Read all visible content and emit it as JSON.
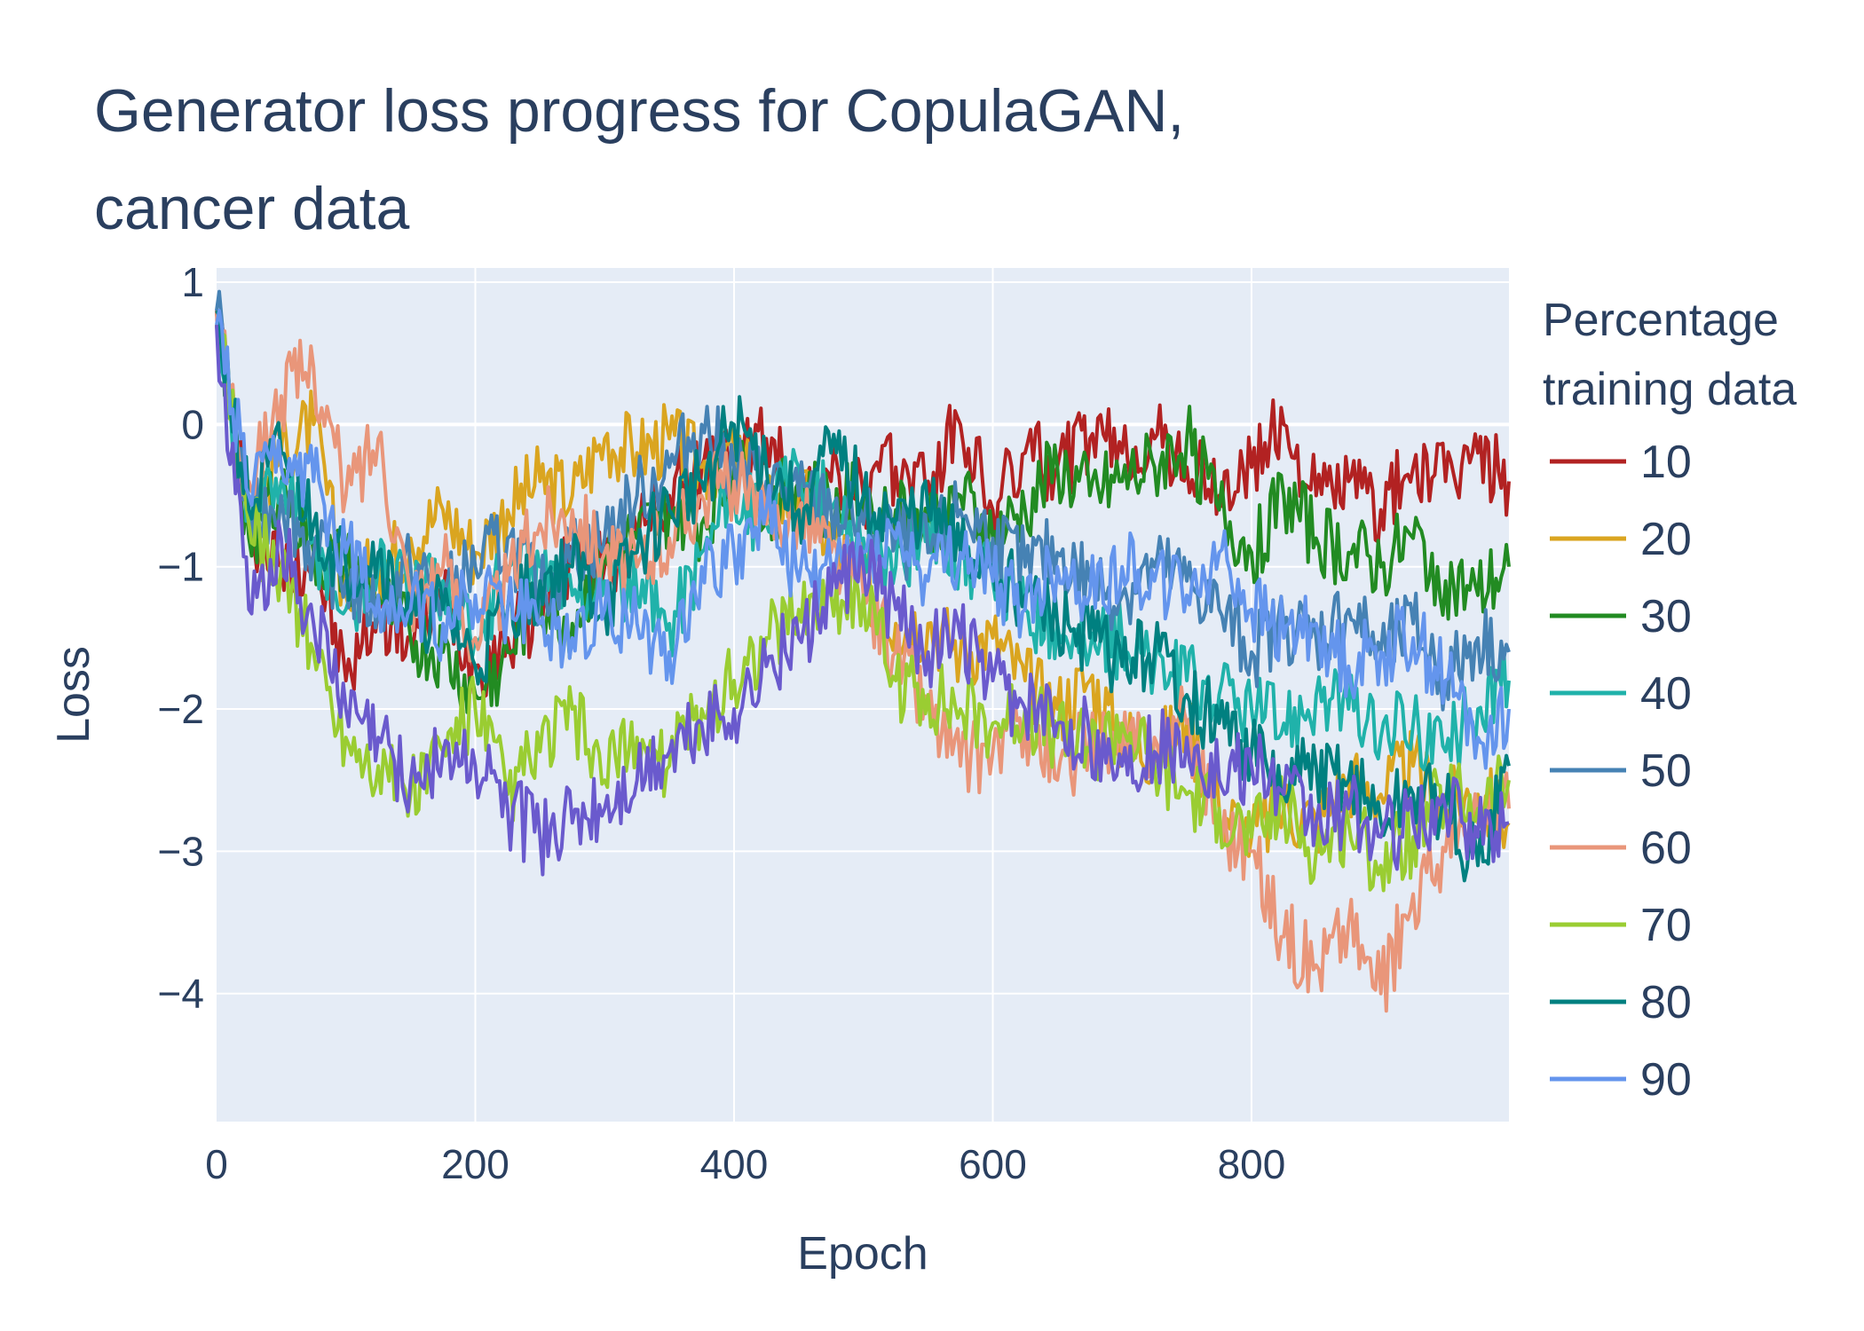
{
  "chart_data": {
    "type": "line",
    "title_lines": [
      "Generator loss progress for CopulaGAN,",
      "cancer data"
    ],
    "xlabel": "Epoch",
    "ylabel": "Loss",
    "xlim": [
      0,
      999
    ],
    "ylim": [
      -4.9,
      1.1
    ],
    "x_ticks": [
      0,
      200,
      400,
      600,
      800
    ],
    "x_tick_labels": [
      "0",
      "200",
      "400",
      "600",
      "800"
    ],
    "y_ticks": [
      1,
      0,
      -1,
      -2,
      -3,
      -4
    ],
    "y_tick_labels": [
      "1",
      "0",
      "−1",
      "−2",
      "−3",
      "−4"
    ],
    "grid": true,
    "plot_background": "#e5ecf6",
    "grid_color": "#ffffff",
    "legend": {
      "title_lines": [
        "Percentage",
        "training data"
      ],
      "placement": "right"
    },
    "series": [
      {
        "name": "10",
        "color": "#b22222",
        "x": [
          0,
          25,
          50,
          75,
          100,
          125,
          150,
          175,
          200,
          225,
          250,
          275,
          300,
          325,
          350,
          375,
          400,
          425,
          450,
          475,
          500,
          525,
          550,
          575,
          600,
          625,
          650,
          675,
          700,
          725,
          750,
          775,
          800,
          825,
          850,
          875,
          900,
          925,
          950,
          975,
          999
        ],
        "values": [
          0.8,
          -0.7,
          -1.0,
          -0.9,
          -1.8,
          -1.3,
          -1.5,
          -1.2,
          -1.7,
          -1.5,
          -1.3,
          -0.9,
          -1.0,
          -0.8,
          -0.5,
          -0.3,
          -0.2,
          -0.1,
          -0.5,
          -0.4,
          -0.5,
          -0.3,
          -0.4,
          0.0,
          -0.6,
          -0.2,
          -0.3,
          -0.1,
          -0.2,
          -0.1,
          -0.3,
          -0.5,
          -0.3,
          0.0,
          -0.5,
          -0.4,
          -0.6,
          -0.3,
          -0.4,
          -0.2,
          -0.4
        ]
      },
      {
        "name": "20",
        "color": "#daa520",
        "x": [
          0,
          25,
          50,
          75,
          100,
          125,
          150,
          175,
          200,
          225,
          250,
          275,
          300,
          325,
          350,
          375,
          400,
          425,
          450,
          475,
          500,
          525,
          550,
          575,
          600,
          625,
          650,
          675,
          700,
          725,
          750,
          775,
          800,
          825,
          850,
          875,
          900,
          925,
          950,
          975,
          999
        ],
        "values": [
          0.7,
          -0.6,
          -0.2,
          0.0,
          -1.2,
          -1.0,
          -0.8,
          -0.6,
          -0.9,
          -0.6,
          -0.4,
          -0.5,
          -0.1,
          -0.2,
          -0.1,
          -0.3,
          -0.2,
          -0.6,
          -0.5,
          -0.8,
          -1.1,
          -1.4,
          -1.4,
          -1.6,
          -1.5,
          -1.8,
          -2.0,
          -1.8,
          -2.2,
          -2.3,
          -2.1,
          -2.7,
          -2.9,
          -2.7,
          -2.8,
          -2.5,
          -2.6,
          -2.4,
          -2.7,
          -2.6,
          -2.8
        ]
      },
      {
        "name": "30",
        "color": "#228b22",
        "x": [
          0,
          25,
          50,
          75,
          100,
          125,
          150,
          175,
          200,
          225,
          250,
          275,
          300,
          325,
          350,
          375,
          400,
          425,
          450,
          475,
          500,
          525,
          550,
          575,
          600,
          625,
          650,
          675,
          700,
          725,
          750,
          775,
          800,
          825,
          850,
          875,
          900,
          925,
          950,
          975,
          999
        ],
        "values": [
          0.8,
          -0.8,
          -0.4,
          -0.9,
          -1.0,
          -1.2,
          -1.5,
          -1.6,
          -1.9,
          -1.6,
          -1.2,
          -1.4,
          -0.9,
          -0.8,
          -0.6,
          -0.7,
          -0.3,
          -0.6,
          -0.4,
          -0.6,
          -0.5,
          -0.6,
          -0.7,
          -0.5,
          -0.8,
          -0.6,
          -0.3,
          -0.5,
          -0.4,
          -0.3,
          -0.1,
          -0.6,
          -0.9,
          -0.5,
          -0.8,
          -0.9,
          -1.0,
          -0.8,
          -1.1,
          -1.2,
          -1.0
        ]
      },
      {
        "name": "40",
        "color": "#20b2aa",
        "x": [
          0,
          25,
          50,
          75,
          100,
          125,
          150,
          175,
          200,
          225,
          250,
          275,
          300,
          325,
          350,
          375,
          400,
          425,
          450,
          475,
          500,
          525,
          550,
          575,
          600,
          625,
          650,
          675,
          700,
          725,
          750,
          775,
          800,
          825,
          850,
          875,
          900,
          925,
          950,
          975,
          999
        ],
        "values": [
          0.7,
          -0.6,
          -0.4,
          -0.8,
          -1.3,
          -1.0,
          -1.2,
          -1.1,
          -1.5,
          -1.0,
          -1.0,
          -1.2,
          -1.1,
          -1.2,
          -1.4,
          -0.9,
          -0.5,
          -0.7,
          -0.3,
          -0.6,
          -0.8,
          -1.0,
          -0.7,
          -0.9,
          -1.1,
          -1.3,
          -1.4,
          -1.6,
          -1.5,
          -1.7,
          -1.8,
          -1.9,
          -2.0,
          -2.1,
          -1.9,
          -2.0,
          -2.2,
          -2.1,
          -2.3,
          -2.0,
          -1.8
        ]
      },
      {
        "name": "50",
        "color": "#4682b4",
        "x": [
          0,
          25,
          50,
          75,
          100,
          125,
          150,
          175,
          200,
          225,
          250,
          275,
          300,
          325,
          350,
          375,
          400,
          425,
          450,
          475,
          500,
          525,
          550,
          575,
          600,
          625,
          650,
          675,
          700,
          725,
          750,
          775,
          800,
          825,
          850,
          875,
          900,
          925,
          950,
          975,
          999
        ],
        "values": [
          0.8,
          -0.7,
          -0.5,
          -0.9,
          -1.1,
          -1.3,
          -1.0,
          -1.2,
          -1.0,
          -0.8,
          -1.2,
          -0.9,
          -0.8,
          -0.5,
          -0.3,
          0.0,
          -0.3,
          -0.4,
          -0.5,
          -0.6,
          -0.7,
          -0.8,
          -0.9,
          -0.6,
          -0.8,
          -1.0,
          -0.9,
          -1.1,
          -1.2,
          -1.0,
          -1.1,
          -1.3,
          -1.6,
          -1.4,
          -1.5,
          -1.3,
          -1.6,
          -1.4,
          -1.8,
          -1.5,
          -1.6
        ]
      },
      {
        "name": "60",
        "color": "#e9967a",
        "x": [
          0,
          25,
          50,
          75,
          100,
          125,
          150,
          175,
          200,
          225,
          250,
          275,
          300,
          325,
          350,
          375,
          400,
          425,
          450,
          475,
          500,
          525,
          550,
          575,
          600,
          625,
          650,
          675,
          700,
          725,
          750,
          775,
          800,
          825,
          850,
          875,
          900,
          925,
          950,
          975,
          999
        ],
        "values": [
          0.8,
          -0.4,
          0.2,
          0.4,
          -0.5,
          -0.1,
          -1.2,
          -1.0,
          -1.5,
          -1.1,
          -0.7,
          -0.6,
          -0.9,
          -1.0,
          -0.8,
          -0.5,
          -0.4,
          -0.7,
          -0.6,
          -0.9,
          -1.2,
          -1.6,
          -2.0,
          -2.4,
          -2.3,
          -2.1,
          -2.5,
          -2.2,
          -2.3,
          -2.2,
          -2.1,
          -2.8,
          -3.0,
          -3.6,
          -3.8,
          -3.5,
          -4.0,
          -3.3,
          -3.0,
          -2.8,
          -2.7
        ]
      },
      {
        "name": "70",
        "color": "#9acd32",
        "x": [
          0,
          25,
          50,
          75,
          100,
          125,
          150,
          175,
          200,
          225,
          250,
          275,
          300,
          325,
          350,
          375,
          400,
          425,
          450,
          475,
          500,
          525,
          550,
          575,
          600,
          625,
          650,
          675,
          700,
          725,
          750,
          775,
          800,
          825,
          850,
          875,
          900,
          925,
          950,
          975,
          999
        ],
        "values": [
          0.7,
          -0.7,
          -1.0,
          -1.6,
          -2.2,
          -2.4,
          -2.6,
          -2.3,
          -2.0,
          -2.6,
          -2.3,
          -2.0,
          -2.5,
          -2.2,
          -2.4,
          -2.0,
          -1.8,
          -1.5,
          -1.3,
          -1.2,
          -1.2,
          -1.8,
          -1.9,
          -2.0,
          -2.1,
          -2.0,
          -2.2,
          -2.3,
          -2.1,
          -2.4,
          -2.6,
          -2.7,
          -2.9,
          -2.7,
          -3.0,
          -2.8,
          -3.1,
          -2.9,
          -2.6,
          -2.7,
          -2.5
        ]
      },
      {
        "name": "80",
        "color": "#008080",
        "x": [
          0,
          25,
          50,
          75,
          100,
          125,
          150,
          175,
          200,
          225,
          250,
          275,
          300,
          325,
          350,
          375,
          400,
          425,
          450,
          475,
          500,
          525,
          550,
          575,
          600,
          625,
          650,
          675,
          700,
          725,
          750,
          775,
          800,
          825,
          850,
          875,
          900,
          925,
          950,
          975,
          999
        ],
        "values": [
          0.8,
          -0.6,
          -0.2,
          -0.7,
          -1.0,
          -0.9,
          -1.4,
          -1.3,
          -1.7,
          -1.3,
          -1.1,
          -1.0,
          -1.3,
          -0.9,
          -0.6,
          -0.4,
          0.0,
          -0.3,
          -0.6,
          -0.2,
          -0.5,
          -0.7,
          -0.6,
          -0.9,
          -1.0,
          -1.2,
          -1.4,
          -1.5,
          -1.7,
          -1.6,
          -1.9,
          -2.1,
          -2.3,
          -2.6,
          -2.4,
          -2.5,
          -2.8,
          -2.6,
          -2.7,
          -3.1,
          -2.4
        ]
      },
      {
        "name": "90",
        "color": "#6495ed",
        "x": [
          0,
          25,
          50,
          75,
          100,
          125,
          150,
          175,
          200,
          225,
          250,
          275,
          300,
          325,
          350,
          375,
          400,
          425,
          450,
          475,
          500,
          525,
          550,
          575,
          600,
          625,
          650,
          675,
          700,
          725,
          750,
          775,
          800,
          825,
          850,
          875,
          900,
          925,
          950,
          975,
          999
        ],
        "values": [
          0.7,
          -0.5,
          -0.3,
          -0.4,
          -0.9,
          -1.2,
          -1.3,
          -1.4,
          -1.2,
          -1.3,
          -1.4,
          -1.5,
          -1.3,
          -1.4,
          -1.6,
          -1.0,
          -0.9,
          -0.6,
          -1.1,
          -1.0,
          -0.9,
          -0.8,
          -1.1,
          -0.9,
          -1.1,
          -1.3,
          -1.0,
          -1.2,
          -1.0,
          -1.1,
          -1.2,
          -0.9,
          -1.3,
          -1.5,
          -1.4,
          -1.7,
          -1.6,
          -1.5,
          -1.8,
          -2.2,
          -2.0
        ]
      },
      {
        "name": "",
        "color": "#6a5acd",
        "x": [
          0,
          25,
          50,
          75,
          100,
          125,
          150,
          175,
          200,
          225,
          250,
          275,
          300,
          325,
          350,
          375,
          400,
          425,
          450,
          475,
          500,
          525,
          550,
          575,
          600,
          625,
          650,
          675,
          700,
          725,
          750,
          775,
          800,
          825,
          850,
          875,
          900,
          925,
          950,
          975,
          999
        ],
        "values": [
          0.7,
          -1.3,
          -0.8,
          -1.4,
          -2.0,
          -2.2,
          -2.5,
          -2.3,
          -2.4,
          -2.7,
          -2.9,
          -2.8,
          -2.7,
          -2.5,
          -2.3,
          -2.1,
          -2.0,
          -1.7,
          -1.5,
          -1.2,
          -1.0,
          -1.3,
          -1.6,
          -1.5,
          -1.8,
          -2.0,
          -2.1,
          -2.2,
          -2.4,
          -2.3,
          -2.2,
          -2.5,
          -2.4,
          -2.6,
          -2.8,
          -2.7,
          -2.9,
          -2.8,
          -2.7,
          -2.9,
          -2.8
        ]
      }
    ]
  }
}
